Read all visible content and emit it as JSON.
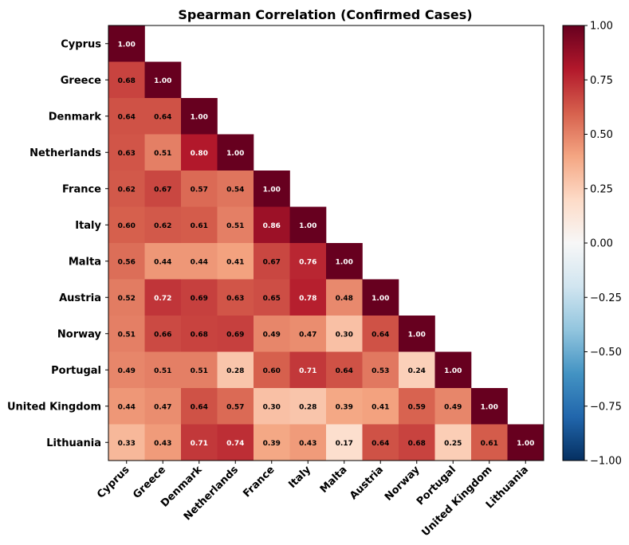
{
  "chart_data": {
    "type": "heatmap",
    "title": "Spearman Correlation (Confirmed Cases)",
    "xlabel": "",
    "ylabel": "",
    "categories": [
      "Cyprus",
      "Greece",
      "Denmark",
      "Netherlands",
      "France",
      "Italy",
      "Malta",
      "Austria",
      "Norway",
      "Portugal",
      "United Kingdom",
      "Lithuania"
    ],
    "values": [
      [
        1.0
      ],
      [
        0.68,
        1.0
      ],
      [
        0.64,
        0.64,
        1.0
      ],
      [
        0.63,
        0.51,
        0.8,
        1.0
      ],
      [
        0.62,
        0.67,
        0.57,
        0.54,
        1.0
      ],
      [
        0.6,
        0.62,
        0.61,
        0.51,
        0.86,
        1.0
      ],
      [
        0.56,
        0.44,
        0.44,
        0.41,
        0.67,
        0.76,
        1.0
      ],
      [
        0.52,
        0.72,
        0.69,
        0.63,
        0.65,
        0.78,
        0.48,
        1.0
      ],
      [
        0.51,
        0.66,
        0.68,
        0.69,
        0.49,
        0.47,
        0.3,
        0.64,
        1.0
      ],
      [
        0.49,
        0.51,
        0.51,
        0.28,
        0.6,
        0.71,
        0.64,
        0.53,
        0.24,
        1.0
      ],
      [
        0.44,
        0.47,
        0.64,
        0.57,
        0.3,
        0.28,
        0.39,
        0.41,
        0.59,
        0.49,
        1.0
      ],
      [
        0.33,
        0.43,
        0.71,
        0.74,
        0.39,
        0.43,
        0.17,
        0.64,
        0.68,
        0.25,
        0.61,
        1.0
      ]
    ],
    "colorbar": {
      "vmin": -1.0,
      "vmax": 1.0,
      "ticks": [
        1.0,
        0.75,
        0.5,
        0.25,
        0.0,
        -0.25,
        -0.5,
        -0.75,
        -1.0
      ],
      "tick_labels": [
        "1.00",
        "0.75",
        "0.50",
        "0.25",
        "0.00",
        "−0.25",
        "−0.50",
        "−0.75",
        "−1.00"
      ],
      "colormap": "RdBu_r"
    }
  }
}
